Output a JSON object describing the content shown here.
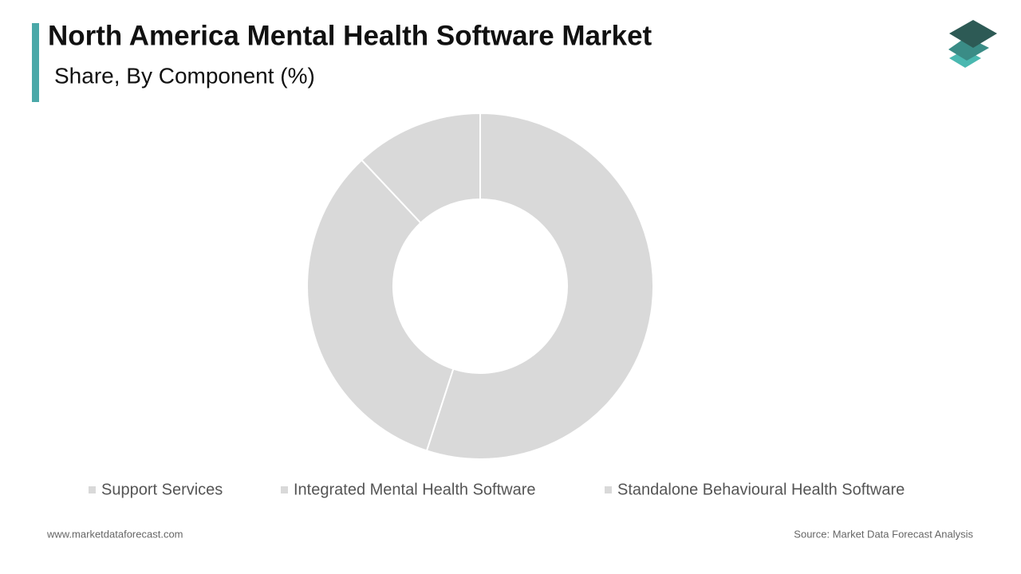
{
  "chart_data": {
    "type": "donut",
    "title": "North America Mental Health Software Market",
    "subtitle": "Share, By Component (%)",
    "categories": [
      "Support Services",
      "Integrated Mental Health Software",
      "Standalone Behavioural Health Software"
    ],
    "values": [
      55,
      33,
      12
    ],
    "colors": [
      "#d9d9d9",
      "#d9d9d9",
      "#d9d9d9"
    ]
  },
  "footer": {
    "website": "www.marketdataforecast.com",
    "source": "Source: Market Data Forecast Analysis"
  }
}
